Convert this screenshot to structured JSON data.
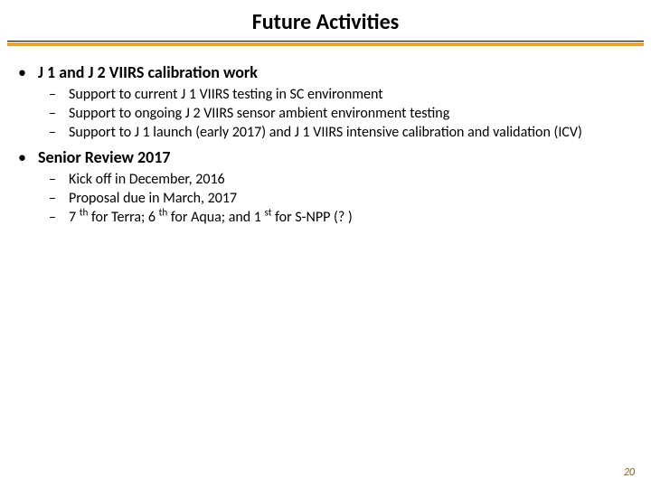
{
  "title": "Future Activities",
  "colors": {
    "text": "#000000",
    "rule_thin": "#000000",
    "rule_accent": "#e8a33d",
    "pagenum": "#8a5a1a",
    "background": "#ffffff"
  },
  "sections": [
    {
      "heading": "J 1 and J 2 VIIRS calibration work",
      "items": [
        {
          "text": "Support to current J 1 VIIRS testing in SC environment"
        },
        {
          "text": "Support to ongoing J 2 VIIRS sensor ambient environment testing"
        },
        {
          "text": "Support to J 1 launch (early 2017) and J 1 VIIRS intensive calibration and validation (ICV)"
        }
      ]
    },
    {
      "heading": "Senior Review 2017",
      "items": [
        {
          "text": "Kick off in December, 2016"
        },
        {
          "text": "Proposal due in March, 2017"
        },
        {
          "segments": [
            {
              "t": "7 "
            },
            {
              "t": "th",
              "sup": true
            },
            {
              "t": " for Terra; 6 "
            },
            {
              "t": "th",
              "sup": true
            },
            {
              "t": " for Aqua; and 1 "
            },
            {
              "t": "st",
              "sup": true
            },
            {
              "t": " for S-NPP (? )"
            }
          ]
        }
      ]
    }
  ],
  "page_number": "20",
  "bullets": {
    "level1": "•",
    "level2": "–"
  }
}
